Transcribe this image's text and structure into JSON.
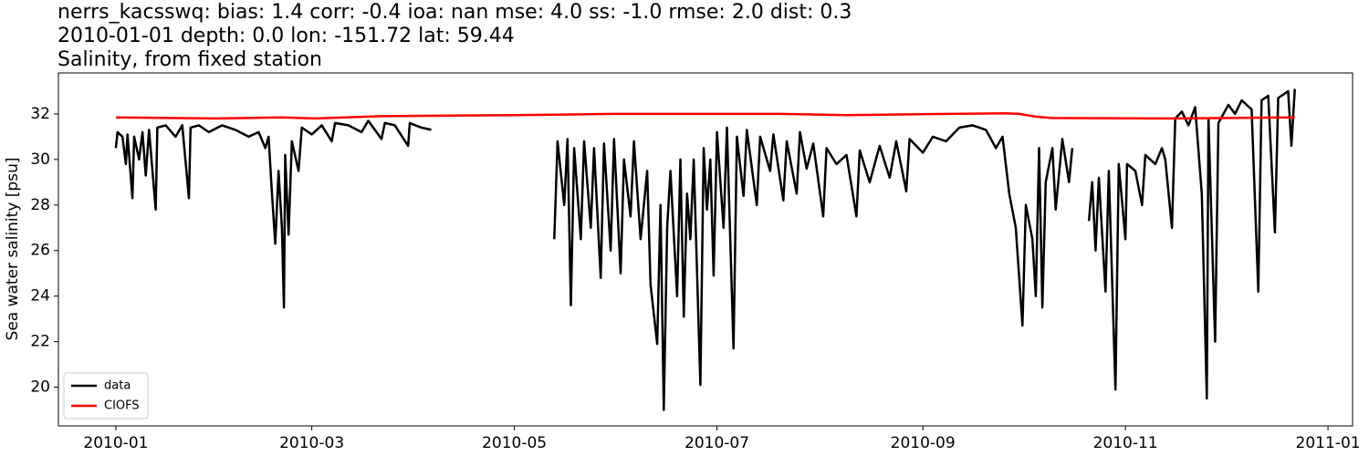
{
  "chart_data": {
    "type": "line",
    "title": [
      "nerrs_kacsswq: bias: 1.4  corr: -0.4  ioa: nan  mse: 4.0  ss: -1.0  rmse: 2.0  dist: 0.3",
      "2010-01-01 depth: 0.0 lon: -151.72 lat: 59.44",
      "Salinity, from fixed station"
    ],
    "ylabel": "Sea water salinity [psu]",
    "xlim": [
      -17.3,
      372.4
    ],
    "ylim": [
      18.3,
      33.8
    ],
    "xticks": [
      {
        "value": 0,
        "label": "2010-01"
      },
      {
        "value": 59,
        "label": "2010-03"
      },
      {
        "value": 120,
        "label": "2010-05"
      },
      {
        "value": 181,
        "label": "2010-07"
      },
      {
        "value": 243,
        "label": "2010-09"
      },
      {
        "value": 304,
        "label": "2010-11"
      },
      {
        "value": 365,
        "label": "2011-01"
      }
    ],
    "yticks": [
      20,
      22,
      24,
      26,
      28,
      30,
      32
    ],
    "legend": "lower left",
    "series": [
      {
        "name": "data",
        "color": "#000000",
        "x": [
          0,
          0.5,
          2,
          3,
          3.5,
          5,
          5.5,
          7,
          8,
          9,
          10,
          12,
          12.5,
          15,
          18,
          20,
          22,
          22.5,
          25,
          28,
          32,
          36,
          40,
          43,
          45,
          46,
          47,
          48,
          49,
          50,
          50.6,
          51,
          52,
          53,
          55,
          56,
          59,
          62,
          65,
          66,
          70,
          74,
          76,
          80,
          81,
          84,
          88,
          88.5,
          92,
          95,
          113,
          132,
          133,
          135,
          136,
          137,
          138,
          140,
          141,
          143,
          144,
          146,
          147,
          149,
          150,
          152,
          153,
          155,
          156,
          158,
          160,
          161,
          163,
          164,
          165,
          166,
          167,
          169,
          170,
          171,
          172,
          173,
          174,
          176,
          177,
          178,
          179,
          180,
          181,
          183,
          184,
          186,
          187,
          189,
          190,
          193,
          194,
          197,
          198,
          201,
          202,
          205,
          206,
          208,
          210,
          213,
          214,
          217,
          220,
          223,
          224,
          227,
          230,
          233,
          235,
          238,
          239,
          243,
          246,
          250,
          254,
          258,
          262,
          265,
          267,
          269,
          271,
          273,
          274,
          276,
          277,
          278,
          279,
          280,
          282,
          283,
          285,
          287,
          288,
          290,
          293,
          294,
          295,
          296,
          298,
          299,
          301,
          302,
          304,
          304.5,
          307,
          309,
          310,
          313,
          315,
          316,
          318,
          319,
          321,
          323,
          325,
          327,
          328.5,
          329,
          331,
          332,
          335,
          337,
          339,
          342,
          344,
          345,
          347,
          349,
          350,
          353,
          354,
          355
        ],
        "values": [
          30.5,
          31.2,
          31.0,
          29.8,
          31.1,
          28.3,
          31.0,
          30.0,
          31.2,
          29.3,
          31.3,
          27.8,
          31.4,
          31.5,
          31.0,
          31.5,
          28.3,
          31.4,
          31.5,
          31.2,
          31.5,
          31.3,
          31.0,
          31.2,
          30.5,
          31.0,
          28.5,
          26.3,
          29.5,
          27.0,
          23.5,
          30.2,
          26.7,
          30.8,
          29.5,
          31.4,
          31.1,
          31.5,
          30.8,
          31.6,
          31.5,
          31.2,
          31.7,
          30.9,
          31.6,
          31.5,
          30.6,
          31.6,
          31.4,
          31.3,
          null,
          26.5,
          30.8,
          28.0,
          30.9,
          23.6,
          30.5,
          26.5,
          30.8,
          27.0,
          30.5,
          24.8,
          30.7,
          26.0,
          30.9,
          25.0,
          30.0,
          27.5,
          30.8,
          26.5,
          29.5,
          24.5,
          21.9,
          28.0,
          19.0,
          27.0,
          29.5,
          24.0,
          30.0,
          23.1,
          28.5,
          26.5,
          30.0,
          20.1,
          30.5,
          27.8,
          30.0,
          24.9,
          31.2,
          27.0,
          31.4,
          21.7,
          31.0,
          28.4,
          31.3,
          28.0,
          31.0,
          29.5,
          31.1,
          28.2,
          30.8,
          28.5,
          31.2,
          29.6,
          30.7,
          27.5,
          30.5,
          29.8,
          30.2,
          27.5,
          30.4,
          29.0,
          30.6,
          29.2,
          30.8,
          28.6,
          30.9,
          30.3,
          31.0,
          30.8,
          31.4,
          31.5,
          31.3,
          30.5,
          31.0,
          28.5,
          27.0,
          22.7,
          28.0,
          26.5,
          24.0,
          30.5,
          23.5,
          29.0,
          30.5,
          27.8,
          30.9,
          29.0,
          30.5,
          null,
          27.3,
          29.0,
          26.0,
          29.2,
          24.2,
          29.5,
          19.9,
          29.8,
          26.5,
          29.8,
          29.5,
          28.0,
          30.2,
          29.8,
          30.5,
          30.0,
          27.0,
          31.8,
          32.1,
          31.5,
          32.3,
          28.5,
          19.5,
          31.8,
          22.0,
          31.6,
          32.4,
          32.0,
          32.6,
          32.2,
          24.2,
          32.6,
          32.8,
          26.8,
          32.7,
          33.0,
          30.6,
          33.1
        ]
      },
      {
        "name": "CIOFS",
        "color": "#ff0000",
        "x": [
          0,
          30,
          50,
          60,
          80,
          120,
          150,
          200,
          220,
          268,
          272,
          277,
          282,
          320,
          355
        ],
        "values": [
          31.85,
          31.8,
          31.85,
          31.8,
          31.9,
          31.95,
          32.0,
          32.0,
          31.95,
          32.03,
          32.0,
          31.88,
          31.82,
          31.8,
          31.85
        ]
      }
    ]
  }
}
